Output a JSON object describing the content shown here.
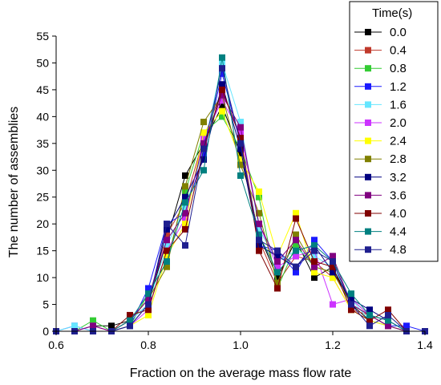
{
  "chart_data": {
    "type": "line",
    "xlabel": "Fraction on the average mass flow rate",
    "ylabel": "The number of assemblies",
    "xlim": [
      0.6,
      1.4
    ],
    "ylim": [
      0,
      55
    ],
    "xticks": [
      "0.6",
      "0.8",
      "1.0",
      "1.2",
      "1.4"
    ],
    "yticks": [
      "0",
      "5",
      "10",
      "15",
      "20",
      "25",
      "30",
      "35",
      "40",
      "45",
      "50",
      "55"
    ],
    "xtick_values": [
      0.6,
      0.8,
      1.0,
      1.2,
      1.4
    ],
    "ytick_values": [
      0,
      5,
      10,
      15,
      20,
      25,
      30,
      35,
      40,
      45,
      50,
      55
    ],
    "grid": false,
    "legend_title": "Time(s)",
    "legend_position": "top-right",
    "x": [
      0.6,
      0.64,
      0.68,
      0.72,
      0.76,
      0.8,
      0.84,
      0.88,
      0.92,
      0.96,
      1.0,
      1.04,
      1.08,
      1.12,
      1.16,
      1.2,
      1.24,
      1.28,
      1.32,
      1.36,
      1.4
    ],
    "series": [
      {
        "name": "0.0",
        "color": "#000000",
        "values": [
          0,
          0,
          1,
          1,
          2,
          5,
          17,
          29,
          35,
          42,
          33,
          18,
          10,
          17,
          10,
          12,
          5,
          2,
          1,
          0,
          0
        ]
      },
      {
        "name": "0.4",
        "color": "#c0392b",
        "values": [
          0,
          0,
          1,
          0,
          2,
          6,
          18,
          24,
          36,
          45,
          36,
          17,
          9,
          14,
          13,
          10,
          4,
          3,
          1,
          0,
          0
        ]
      },
      {
        "name": "0.8",
        "color": "#33cc33",
        "values": [
          0,
          0,
          2,
          0,
          1,
          7,
          13,
          26,
          37,
          40,
          34,
          25,
          8,
          16,
          12,
          11,
          6,
          3,
          2,
          0,
          0
        ]
      },
      {
        "name": "1.2",
        "color": "#1a1aff",
        "values": [
          0,
          1,
          0,
          0,
          1,
          8,
          20,
          22,
          33,
          48,
          35,
          16,
          15,
          11,
          17,
          13,
          5,
          3,
          1,
          1,
          0
        ]
      },
      {
        "name": "1.6",
        "color": "#66e6ff",
        "values": [
          0,
          1,
          0,
          0,
          2,
          5,
          16,
          23,
          34,
          50,
          39,
          19,
          13,
          15,
          14,
          12,
          6,
          2,
          1,
          0,
          0
        ]
      },
      {
        "name": "2.0",
        "color": "#cc33ff",
        "values": [
          0,
          0,
          1,
          0,
          1,
          4,
          15,
          21,
          36,
          43,
          37,
          20,
          12,
          14,
          15,
          5,
          6,
          3,
          1,
          0,
          0
        ]
      },
      {
        "name": "2.4",
        "color": "#ffff00",
        "values": [
          0,
          0,
          0,
          0,
          1,
          3,
          14,
          20,
          37,
          41,
          32,
          26,
          14,
          22,
          11,
          10,
          4,
          2,
          1,
          0,
          0
        ]
      },
      {
        "name": "2.8",
        "color": "#808000",
        "values": [
          0,
          0,
          0,
          0,
          2,
          6,
          12,
          27,
          39,
          44,
          31,
          22,
          9,
          18,
          12,
          11,
          5,
          3,
          1,
          0,
          0
        ]
      },
      {
        "name": "3.2",
        "color": "#000080",
        "values": [
          0,
          0,
          0,
          0,
          1,
          5,
          19,
          25,
          32,
          46,
          34,
          16,
          14,
          12,
          16,
          11,
          6,
          4,
          2,
          0,
          0
        ]
      },
      {
        "name": "3.6",
        "color": "#800080",
        "values": [
          0,
          0,
          1,
          0,
          2,
          6,
          17,
          22,
          35,
          44,
          38,
          20,
          13,
          17,
          12,
          14,
          5,
          3,
          1,
          0,
          0
        ]
      },
      {
        "name": "4.0",
        "color": "#800000",
        "values": [
          0,
          0,
          0,
          0,
          3,
          4,
          15,
          19,
          34,
          45,
          36,
          15,
          8,
          21,
          13,
          12,
          4,
          2,
          4,
          0,
          0
        ]
      },
      {
        "name": "4.4",
        "color": "#008080",
        "values": [
          0,
          0,
          0,
          0,
          2,
          7,
          13,
          24,
          30,
          51,
          29,
          18,
          11,
          15,
          16,
          13,
          7,
          3,
          2,
          0,
          0
        ]
      },
      {
        "name": "4.8",
        "color": "#1f1f8f",
        "values": [
          0,
          0,
          0,
          0,
          1,
          5,
          20,
          16,
          34,
          49,
          35,
          17,
          15,
          12,
          15,
          13,
          5,
          1,
          3,
          0,
          0
        ]
      }
    ]
  }
}
